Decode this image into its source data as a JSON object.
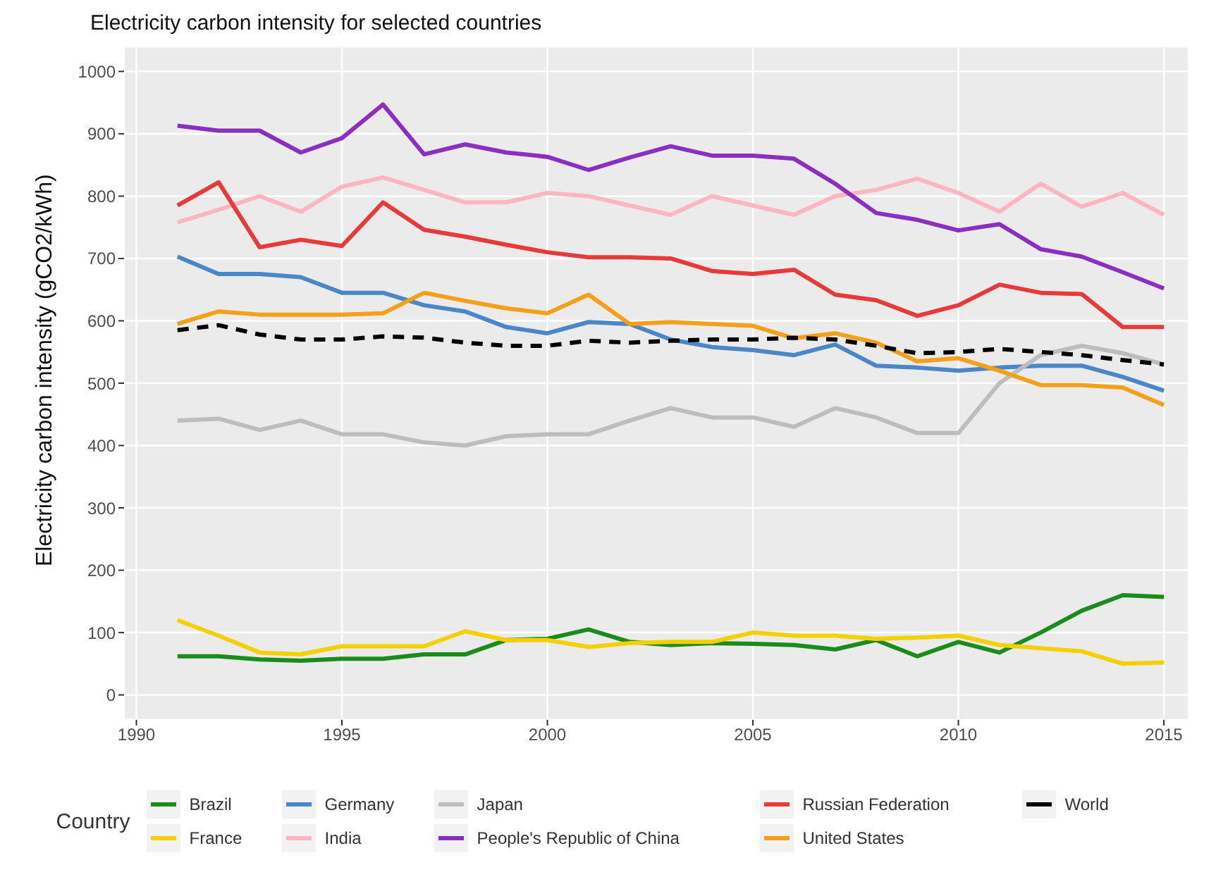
{
  "chart_data": {
    "type": "line",
    "title": "Electricity carbon intensity for selected countries",
    "ylabel": "Electricity carbon intensity (gCO2/kWh)",
    "legend_title": "Country",
    "legend": "bottom",
    "grid": true,
    "marker": "none",
    "line_style": "solid",
    "x": [
      1991,
      1992,
      1993,
      1994,
      1995,
      1996,
      1997,
      1998,
      1999,
      2000,
      2001,
      2002,
      2003,
      2004,
      2005,
      2006,
      2007,
      2008,
      2009,
      2010,
      2011,
      2012,
      2013,
      2014,
      2015
    ],
    "xlim": [
      1989.7,
      2015.6
    ],
    "xticks": [
      1990,
      1995,
      2000,
      2005,
      2010,
      2015
    ],
    "ylim": [
      -40,
      1040
    ],
    "yticks": [
      0,
      100,
      200,
      300,
      400,
      500,
      600,
      700,
      800,
      900,
      1000
    ],
    "series": [
      {
        "name": "Brazil",
        "color": "#1a8c1a",
        "values": [
          62,
          62,
          57,
          55,
          58,
          58,
          65,
          65,
          88,
          90,
          105,
          85,
          80,
          83,
          82,
          80,
          73,
          88,
          62,
          85,
          68,
          100,
          135,
          160,
          157
        ]
      },
      {
        "name": "France",
        "color": "#f5d000",
        "values": [
          120,
          95,
          68,
          65,
          78,
          78,
          78,
          102,
          88,
          88,
          77,
          83,
          85,
          85,
          100,
          95,
          95,
          90,
          92,
          95,
          80,
          75,
          70,
          50,
          52
        ]
      },
      {
        "name": "Germany",
        "color": "#4a86c8",
        "values": [
          703,
          675,
          675,
          670,
          645,
          645,
          625,
          615,
          590,
          580,
          598,
          595,
          570,
          558,
          553,
          545,
          562,
          528,
          525,
          520,
          525,
          528,
          528,
          510,
          488
        ]
      },
      {
        "name": "India",
        "color": "#ffb6c1",
        "values": [
          758,
          778,
          800,
          775,
          815,
          830,
          810,
          790,
          790,
          805,
          800,
          785,
          770,
          800,
          785,
          770,
          800,
          810,
          828,
          805,
          775,
          820,
          783,
          805,
          770
        ]
      },
      {
        "name": "Japan",
        "color": "#bdbdbd",
        "values": [
          440,
          443,
          425,
          440,
          418,
          418,
          405,
          400,
          415,
          418,
          418,
          440,
          460,
          445,
          445,
          430,
          460,
          445,
          420,
          420,
          500,
          545,
          560,
          548,
          530
        ]
      },
      {
        "name": "People's Republic of China",
        "color": "#8b2fc0",
        "values": [
          913,
          905,
          905,
          870,
          893,
          947,
          867,
          883,
          870,
          863,
          842,
          862,
          880,
          865,
          865,
          860,
          820,
          773,
          762,
          745,
          755,
          715,
          703,
          678,
          652
        ]
      },
      {
        "name": "Russian Federation",
        "color": "#e83a3a",
        "values": [
          785,
          822,
          718,
          730,
          720,
          790,
          746,
          735,
          722,
          710,
          702,
          702,
          700,
          680,
          675,
          682,
          642,
          633,
          608,
          625,
          658,
          645,
          643,
          590,
          590
        ]
      },
      {
        "name": "United States",
        "color": "#f5a01a",
        "values": [
          595,
          615,
          610,
          610,
          610,
          612,
          645,
          632,
          620,
          612,
          642,
          595,
          598,
          595,
          592,
          572,
          580,
          565,
          535,
          540,
          520,
          497,
          497,
          493,
          465
        ]
      },
      {
        "name": "World",
        "color": "#000000",
        "line_style": "dashed",
        "values": [
          585,
          593,
          578,
          570,
          570,
          575,
          573,
          565,
          560,
          560,
          568,
          565,
          568,
          570,
          570,
          573,
          570,
          560,
          548,
          550,
          555,
          550,
          545,
          537,
          530
        ]
      }
    ]
  }
}
